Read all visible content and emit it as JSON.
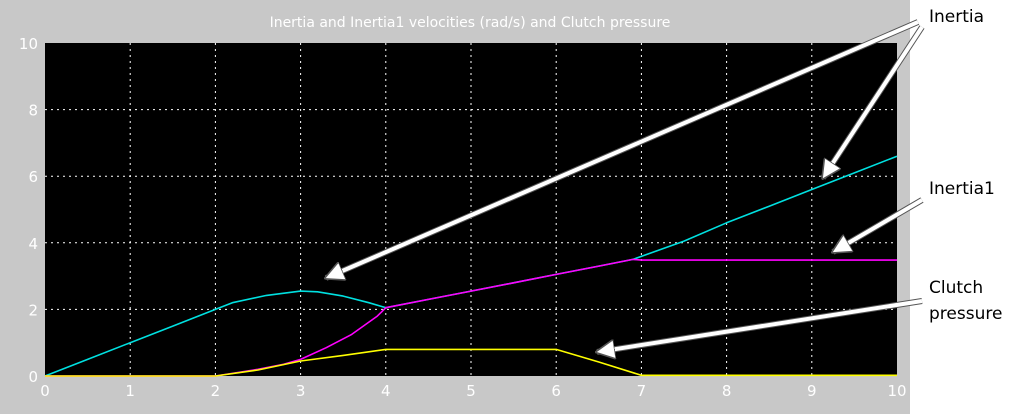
{
  "chart_data": {
    "type": "line",
    "title": "Inertia and Inertia1  velocities (rad/s) and Clutch pressure",
    "xlabel": "",
    "ylabel": "",
    "xlim": [
      0,
      10
    ],
    "ylim": [
      0,
      10
    ],
    "xticks": [
      "0",
      "1",
      "2",
      "3",
      "4",
      "5",
      "6",
      "7",
      "8",
      "9",
      "10"
    ],
    "yticks": [
      "0",
      "2",
      "4",
      "6",
      "8",
      "10"
    ],
    "grid": true,
    "background": "#000000",
    "frame_color": "#c8c8c8",
    "series": [
      {
        "color": "#00e0e0",
        "x": [
          0,
          0.5,
          1,
          1.5,
          2,
          2.2,
          2.6,
          3,
          3.2,
          3.5,
          3.8,
          4,
          4.5,
          5,
          5.5,
          6,
          6.5,
          6.9,
          7.5,
          8,
          8.5,
          9,
          9.5,
          10
        ],
        "y": [
          0,
          0.5,
          1.0,
          1.5,
          2.0,
          2.2,
          2.42,
          2.55,
          2.53,
          2.4,
          2.2,
          2.05,
          2.3,
          2.55,
          2.8,
          3.05,
          3.3,
          3.5,
          4.05,
          4.6,
          5.1,
          5.6,
          6.1,
          6.6
        ]
      },
      {
        "color": "#ff00ff",
        "x": [
          0,
          2,
          2.5,
          2.8,
          3,
          3.3,
          3.6,
          3.9,
          4,
          4.5,
          5,
          5.5,
          6,
          6.5,
          6.9,
          7,
          8,
          9,
          10
        ],
        "y": [
          0,
          0,
          0.2,
          0.35,
          0.5,
          0.85,
          1.25,
          1.8,
          2.05,
          2.3,
          2.55,
          2.8,
          3.05,
          3.3,
          3.5,
          3.48,
          3.48,
          3.48,
          3.48
        ]
      },
      {
        "color": "#ffff00",
        "x": [
          0,
          2,
          2.5,
          3,
          3.5,
          4,
          4.5,
          5,
          5.5,
          6,
          6.5,
          7,
          8,
          9,
          10
        ],
        "y": [
          0,
          0,
          0.18,
          0.45,
          0.62,
          0.8,
          0.8,
          0.8,
          0.8,
          0.8,
          0.42,
          0.02,
          0.02,
          0.02,
          0.02
        ]
      }
    ]
  },
  "annotations": [
    {
      "lines": [
        "Inertia"
      ],
      "color": "#000000"
    },
    {
      "lines": [
        "Inertia1"
      ],
      "color": "#000000"
    },
    {
      "lines": [
        "Clutch",
        "pressure"
      ],
      "color": "#000000"
    }
  ]
}
